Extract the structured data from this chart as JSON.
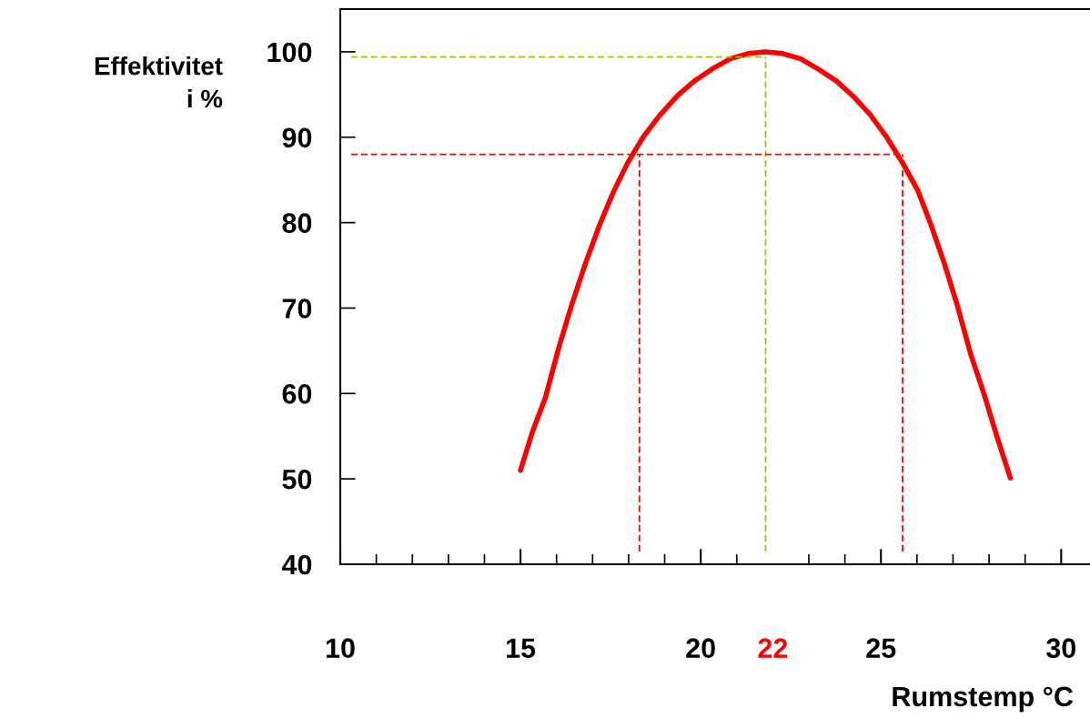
{
  "chart_data": {
    "type": "line",
    "xlabel": "Rumstemp °C",
    "ylabel": "Effektivitet\ni %",
    "x": [
      15.0,
      15.33,
      15.69,
      16.07,
      16.43,
      16.8,
      17.2,
      17.59,
      17.96,
      18.4,
      18.85,
      19.36,
      19.83,
      20.32,
      20.83,
      21.32,
      21.79,
      22.27,
      22.76,
      23.25,
      23.76,
      24.23,
      24.69,
      25.16,
      25.6,
      26.03,
      26.4,
      26.76,
      27.12,
      27.49,
      27.87,
      28.23,
      28.59
    ],
    "series": [
      {
        "color": "#ff0000",
        "values": [
          51.0,
          55.5,
          59.5,
          65.5,
          70.5,
          75.2,
          79.8,
          83.7,
          86.9,
          90.0,
          92.5,
          94.9,
          96.6,
          98.0,
          99.2,
          99.8,
          100.0,
          99.8,
          99.2,
          98.0,
          96.6,
          94.8,
          92.7,
          90.0,
          87.0,
          83.7,
          79.6,
          75.2,
          70.3,
          64.6,
          59.8,
          54.8,
          50.1
        ]
      }
    ],
    "xlim": [
      10,
      30.8
    ],
    "ylim": [
      40,
      105
    ],
    "xticks": [
      10,
      15,
      20,
      {
        "value": 22,
        "label": "22"
      },
      25,
      30
    ],
    "yticks": [
      40,
      50,
      60,
      70,
      80,
      90,
      100
    ],
    "ref_lines": [
      {
        "axis": "y",
        "value": 99.4,
        "color": "#99cc00",
        "line_style": "dashed"
      },
      {
        "axis": "x",
        "value": 21.8,
        "color": "#99cc00",
        "line_style": "dashed"
      },
      {
        "axis": "y",
        "value": 88,
        "color": "#ff0000",
        "line_style": "dashed"
      },
      {
        "axis": "x",
        "value": 18.3,
        "color": "#ff0000",
        "line_style": "dashed"
      },
      {
        "axis": "x",
        "value": 25.6,
        "color": "#ff0000",
        "line_style": "dashed"
      }
    ],
    "grid": false,
    "legend": false,
    "marker": "none",
    "line_style": "solid"
  }
}
